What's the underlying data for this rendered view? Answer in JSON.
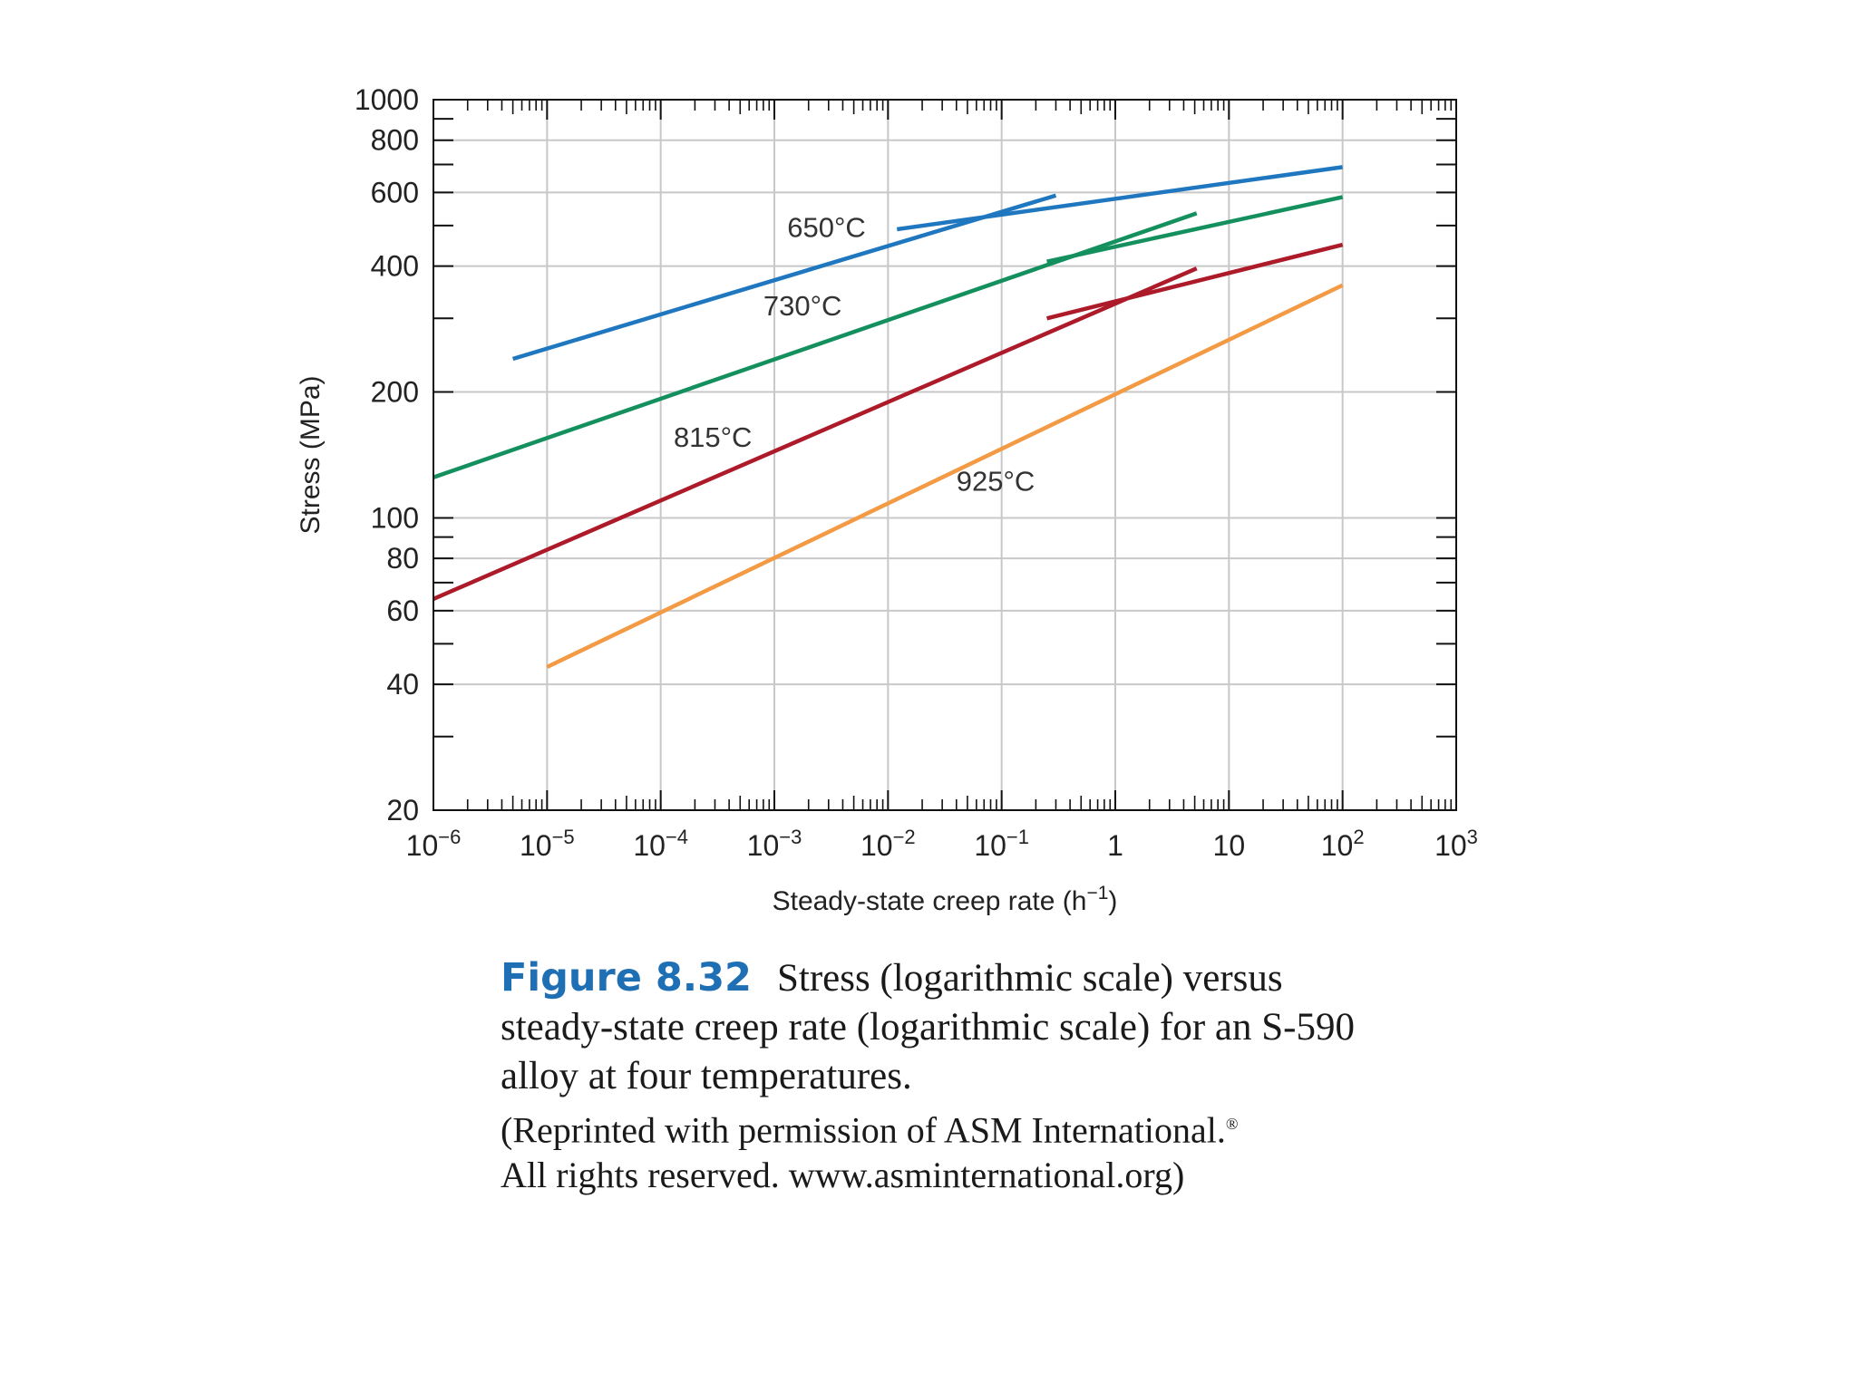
{
  "chart_data": {
    "type": "line",
    "x_scale": "log",
    "y_scale": "log",
    "xlim": [
      1e-06,
      1000
    ],
    "ylim": [
      20,
      1000
    ],
    "xlabel": "Steady-state creep rate (h⁻¹)",
    "ylabel": "Stress (MPa)",
    "x_ticks": [
      {
        "value": 1e-06,
        "base": "10",
        "exp": "−6"
      },
      {
        "value": 1e-05,
        "base": "10",
        "exp": "−5"
      },
      {
        "value": 0.0001,
        "base": "10",
        "exp": "−4"
      },
      {
        "value": 0.001,
        "base": "10",
        "exp": "−3"
      },
      {
        "value": 0.01,
        "base": "10",
        "exp": "−2"
      },
      {
        "value": 0.1,
        "base": "10",
        "exp": "−1"
      },
      {
        "value": 1,
        "base": "1",
        "exp": ""
      },
      {
        "value": 10,
        "base": "10",
        "exp": ""
      },
      {
        "value": 100,
        "base": "10",
        "exp": "2"
      },
      {
        "value": 1000,
        "base": "10",
        "exp": "3"
      }
    ],
    "y_ticks": [
      {
        "value": 1000,
        "label": "1000"
      },
      {
        "value": 800,
        "label": "800"
      },
      {
        "value": 600,
        "label": "600"
      },
      {
        "value": 400,
        "label": "400"
      },
      {
        "value": 200,
        "label": "200"
      },
      {
        "value": 100,
        "label": "100"
      },
      {
        "value": 80,
        "label": "80"
      },
      {
        "value": 60,
        "label": "60"
      },
      {
        "value": 40,
        "label": "40"
      },
      {
        "value": 20,
        "label": "20"
      }
    ],
    "y_minor_ticks": [
      900,
      700,
      500,
      300,
      90,
      70,
      50,
      30
    ],
    "grid": true,
    "series": [
      {
        "name": "650°C",
        "color": "#1f77c0",
        "segments": [
          [
            [
              5e-06,
              240
            ],
            [
              0.3,
              590
            ]
          ],
          [
            [
              0.012,
              490
            ],
            [
              100,
              690
            ]
          ]
        ],
        "label_at": [
          0.0013,
          470
        ]
      },
      {
        "name": "730°C",
        "color": "#14905e",
        "segments": [
          [
            [
              1e-06,
              125
            ],
            [
              5.2,
              535
            ]
          ],
          [
            [
              0.25,
              410
            ],
            [
              100,
              585
            ]
          ]
        ],
        "label_at": [
          0.0008,
          305
        ]
      },
      {
        "name": "815°C",
        "color": "#ad1a2a",
        "segments": [
          [
            [
              1e-06,
              64
            ],
            [
              5.2,
              395
            ]
          ],
          [
            [
              0.25,
              300
            ],
            [
              100,
              450
            ]
          ]
        ],
        "label_at": [
          0.00013,
          148
        ]
      },
      {
        "name": "925°C",
        "color": "#f39a45",
        "segments": [
          [
            [
              1e-05,
              44
            ],
            [
              100,
              360
            ]
          ]
        ],
        "label_at": [
          0.04,
          116
        ]
      }
    ]
  },
  "caption": {
    "figure_number": "Figure 8.32",
    "text": "Stress (logarithmic scale) versus steady-state creep rate (logarithmic scale) for an S-590 alloy at four temperatures.",
    "credit_line1": "(Reprinted with permission of ASM International.",
    "credit_mark": "®",
    "credit_line2": "All rights reserved. www.asminternational.org)"
  }
}
